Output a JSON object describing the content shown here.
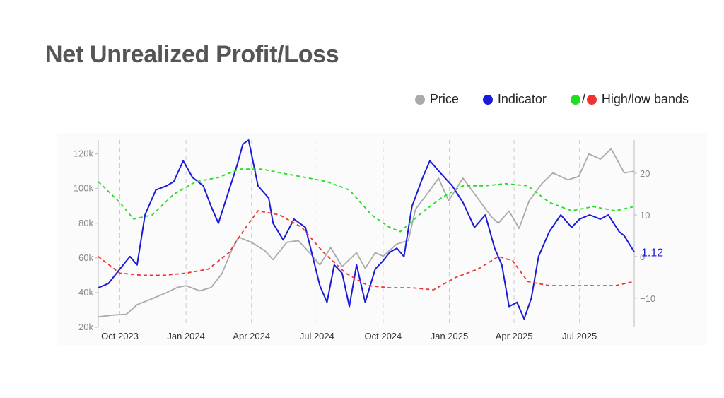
{
  "title": "Net Unrealized Profit/Loss",
  "legend": {
    "price": {
      "label": "Price",
      "color": "#aaaaaa"
    },
    "indicator": {
      "label": "Indicator",
      "color": "#1a1adb"
    },
    "bands": {
      "label": "High/low bands",
      "sep": "/",
      "high_color": "#22dd22",
      "low_color": "#ee3333"
    }
  },
  "chart_data": {
    "type": "line",
    "x_range": [
      "2023-09-01",
      "2025-09-15"
    ],
    "x_ticks": [
      {
        "date": "2023-10-01",
        "label": "Oct 2023"
      },
      {
        "date": "2024-01-01",
        "label": "Jan 2024"
      },
      {
        "date": "2024-04-01",
        "label": "Apr 2024"
      },
      {
        "date": "2024-07-01",
        "label": "Jul 2024"
      },
      {
        "date": "2024-10-01",
        "label": "Oct 2024"
      },
      {
        "date": "2025-01-01",
        "label": "Jan 2025"
      },
      {
        "date": "2025-04-01",
        "label": "Apr 2025"
      },
      {
        "date": "2025-07-01",
        "label": "Jul 2025"
      }
    ],
    "y_left": {
      "range": [
        20000,
        128000
      ],
      "ticks": [
        {
          "v": 20000,
          "label": "20k"
        },
        {
          "v": 40000,
          "label": "40k"
        },
        {
          "v": 60000,
          "label": "60k"
        },
        {
          "v": 80000,
          "label": "80k"
        },
        {
          "v": 100000,
          "label": "100k"
        },
        {
          "v": 120000,
          "label": "120k"
        }
      ]
    },
    "y_right": {
      "range": [
        -17,
        28
      ],
      "ticks": [
        {
          "v": 20,
          "label": "20"
        },
        {
          "v": 10,
          "label": "10"
        },
        {
          "v": 0,
          "label": "0"
        },
        {
          "v": -10,
          "label": "−10"
        }
      ]
    },
    "last_value_label": "1.12",
    "gridlines_vertical": true,
    "series": [
      {
        "name": "Price",
        "axis": "left",
        "color": "#aaaaaa",
        "dash": "none",
        "points": [
          [
            "2023-09-01",
            26000
          ],
          [
            "2023-09-20",
            27000
          ],
          [
            "2023-10-10",
            27500
          ],
          [
            "2023-10-25",
            33000
          ],
          [
            "2023-11-15",
            36500
          ],
          [
            "2023-12-05",
            40000
          ],
          [
            "2023-12-20",
            43000
          ],
          [
            "2024-01-01",
            44000
          ],
          [
            "2024-01-20",
            41000
          ],
          [
            "2024-02-05",
            43000
          ],
          [
            "2024-02-20",
            51000
          ],
          [
            "2024-03-05",
            65000
          ],
          [
            "2024-03-14",
            72000
          ],
          [
            "2024-04-01",
            69000
          ],
          [
            "2024-04-20",
            64000
          ],
          [
            "2024-05-01",
            59000
          ],
          [
            "2024-05-20",
            69000
          ],
          [
            "2024-06-05",
            70000
          ],
          [
            "2024-06-25",
            61000
          ],
          [
            "2024-07-05",
            56000
          ],
          [
            "2024-07-20",
            66000
          ],
          [
            "2024-08-05",
            55000
          ],
          [
            "2024-08-25",
            63000
          ],
          [
            "2024-09-06",
            54000
          ],
          [
            "2024-09-20",
            63000
          ],
          [
            "2024-10-01",
            61000
          ],
          [
            "2024-10-20",
            68000
          ],
          [
            "2024-11-05",
            70000
          ],
          [
            "2024-11-15",
            88000
          ],
          [
            "2024-12-05",
            99000
          ],
          [
            "2024-12-17",
            106000
          ],
          [
            "2024-12-31",
            93000
          ],
          [
            "2025-01-20",
            106000
          ],
          [
            "2025-02-05",
            97000
          ],
          [
            "2025-02-28",
            84000
          ],
          [
            "2025-03-10",
            80000
          ],
          [
            "2025-03-25",
            87000
          ],
          [
            "2025-04-08",
            77000
          ],
          [
            "2025-04-22",
            93000
          ],
          [
            "2025-05-10",
            103000
          ],
          [
            "2025-05-25",
            109000
          ],
          [
            "2025-06-15",
            105000
          ],
          [
            "2025-06-30",
            107000
          ],
          [
            "2025-07-14",
            120000
          ],
          [
            "2025-07-30",
            117000
          ],
          [
            "2025-08-14",
            123000
          ],
          [
            "2025-09-01",
            109000
          ],
          [
            "2025-09-15",
            110000
          ]
        ]
      },
      {
        "name": "Indicator",
        "axis": "right",
        "color": "#1a1adb",
        "dash": "none",
        "points": [
          [
            "2023-09-01",
            -7.5
          ],
          [
            "2023-09-15",
            -6.5
          ],
          [
            "2023-10-01",
            -3
          ],
          [
            "2023-10-15",
            0
          ],
          [
            "2023-10-25",
            -2
          ],
          [
            "2023-11-05",
            10
          ],
          [
            "2023-11-20",
            16
          ],
          [
            "2023-12-05",
            17
          ],
          [
            "2023-12-15",
            18
          ],
          [
            "2023-12-28",
            23
          ],
          [
            "2024-01-10",
            19
          ],
          [
            "2024-01-25",
            17
          ],
          [
            "2024-02-05",
            12
          ],
          [
            "2024-02-15",
            8
          ],
          [
            "2024-02-28",
            15
          ],
          [
            "2024-03-12",
            22
          ],
          [
            "2024-03-20",
            27
          ],
          [
            "2024-03-28",
            28
          ],
          [
            "2024-04-10",
            17
          ],
          [
            "2024-04-25",
            14
          ],
          [
            "2024-05-01",
            8
          ],
          [
            "2024-05-15",
            4
          ],
          [
            "2024-05-30",
            9
          ],
          [
            "2024-06-15",
            7
          ],
          [
            "2024-06-25",
            0
          ],
          [
            "2024-07-05",
            -7
          ],
          [
            "2024-07-15",
            -11
          ],
          [
            "2024-07-25",
            -2
          ],
          [
            "2024-08-05",
            -4
          ],
          [
            "2024-08-15",
            -12
          ],
          [
            "2024-08-25",
            -2
          ],
          [
            "2024-09-06",
            -11
          ],
          [
            "2024-09-20",
            -3
          ],
          [
            "2024-10-01",
            -1
          ],
          [
            "2024-10-10",
            1
          ],
          [
            "2024-10-20",
            2
          ],
          [
            "2024-10-30",
            0
          ],
          [
            "2024-11-10",
            12
          ],
          [
            "2024-11-25",
            19
          ],
          [
            "2024-12-05",
            23
          ],
          [
            "2024-12-20",
            20
          ],
          [
            "2025-01-05",
            17
          ],
          [
            "2025-01-20",
            13
          ],
          [
            "2025-02-05",
            7
          ],
          [
            "2025-02-20",
            10
          ],
          [
            "2025-03-05",
            2
          ],
          [
            "2025-03-15",
            -2
          ],
          [
            "2025-03-25",
            -12
          ],
          [
            "2025-04-05",
            -11
          ],
          [
            "2025-04-15",
            -15
          ],
          [
            "2025-04-25",
            -10
          ],
          [
            "2025-05-05",
            0
          ],
          [
            "2025-05-20",
            6
          ],
          [
            "2025-06-05",
            10
          ],
          [
            "2025-06-20",
            7
          ],
          [
            "2025-07-01",
            9
          ],
          [
            "2025-07-15",
            10
          ],
          [
            "2025-07-30",
            9
          ],
          [
            "2025-08-10",
            10
          ],
          [
            "2025-08-25",
            6
          ],
          [
            "2025-09-01",
            5
          ],
          [
            "2025-09-15",
            1.12
          ]
        ]
      },
      {
        "name": "High band",
        "axis": "right",
        "color": "#22dd22",
        "dash": "5,4",
        "points": [
          [
            "2023-09-01",
            18
          ],
          [
            "2023-10-01",
            13
          ],
          [
            "2023-10-20",
            9
          ],
          [
            "2023-11-15",
            10
          ],
          [
            "2023-12-15",
            15
          ],
          [
            "2024-01-15",
            18
          ],
          [
            "2024-02-15",
            19
          ],
          [
            "2024-03-15",
            21
          ],
          [
            "2024-04-15",
            21
          ],
          [
            "2024-05-15",
            20
          ],
          [
            "2024-06-15",
            19
          ],
          [
            "2024-07-15",
            18
          ],
          [
            "2024-08-15",
            16
          ],
          [
            "2024-09-15",
            10
          ],
          [
            "2024-10-10",
            7
          ],
          [
            "2024-10-25",
            6
          ],
          [
            "2024-11-20",
            10
          ],
          [
            "2024-12-20",
            14
          ],
          [
            "2025-01-20",
            17
          ],
          [
            "2025-02-20",
            17
          ],
          [
            "2025-03-20",
            17.5
          ],
          [
            "2025-04-20",
            17
          ],
          [
            "2025-05-20",
            13
          ],
          [
            "2025-06-20",
            11
          ],
          [
            "2025-07-20",
            12
          ],
          [
            "2025-08-20",
            11
          ],
          [
            "2025-09-15",
            12
          ]
        ]
      },
      {
        "name": "Low band",
        "axis": "right",
        "color": "#ee3333",
        "dash": "5,4",
        "points": [
          [
            "2023-09-01",
            0
          ],
          [
            "2023-10-01",
            -4
          ],
          [
            "2023-11-01",
            -4.5
          ],
          [
            "2023-12-01",
            -4.5
          ],
          [
            "2024-01-01",
            -4
          ],
          [
            "2024-02-01",
            -3
          ],
          [
            "2024-03-01",
            1
          ],
          [
            "2024-03-20",
            6
          ],
          [
            "2024-04-10",
            11
          ],
          [
            "2024-05-10",
            10
          ],
          [
            "2024-06-10",
            7
          ],
          [
            "2024-07-10",
            1
          ],
          [
            "2024-08-10",
            -4
          ],
          [
            "2024-09-10",
            -7
          ],
          [
            "2024-10-10",
            -7.5
          ],
          [
            "2024-11-10",
            -7.5
          ],
          [
            "2024-12-10",
            -8
          ],
          [
            "2025-01-10",
            -5
          ],
          [
            "2025-02-10",
            -3
          ],
          [
            "2025-03-10",
            0
          ],
          [
            "2025-03-30",
            -1
          ],
          [
            "2025-04-20",
            -6
          ],
          [
            "2025-05-20",
            -7
          ],
          [
            "2025-06-20",
            -7
          ],
          [
            "2025-07-20",
            -7
          ],
          [
            "2025-08-20",
            -7
          ],
          [
            "2025-09-15",
            -6
          ]
        ]
      }
    ]
  }
}
